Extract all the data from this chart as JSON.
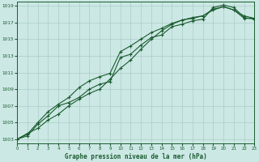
{
  "title": "Graphe pression niveau de la mer (hPa)",
  "bg_color": "#cce8e4",
  "grid_color": "#aaccc8",
  "line_color": "#1a5c30",
  "xlim": [
    0,
    23
  ],
  "ylim": [
    1002.5,
    1019.5
  ],
  "yticks": [
    1003,
    1005,
    1007,
    1009,
    1011,
    1013,
    1015,
    1017,
    1019
  ],
  "xticks": [
    0,
    1,
    2,
    3,
    4,
    5,
    6,
    7,
    8,
    9,
    10,
    11,
    12,
    13,
    14,
    15,
    16,
    17,
    18,
    19,
    20,
    21,
    22,
    23
  ],
  "series1_y": [
    1003.0,
    1003.4,
    1004.8,
    1005.8,
    1007.0,
    1007.4,
    1008.0,
    1009.0,
    1009.6,
    1009.9,
    1012.8,
    1013.2,
    1014.3,
    1015.2,
    1015.5,
    1016.5,
    1016.8,
    1017.2,
    1017.4,
    1018.8,
    1019.1,
    1018.8,
    1017.6,
    1017.4
  ],
  "series2_y": [
    1003.0,
    1003.6,
    1005.0,
    1006.3,
    1007.2,
    1008.0,
    1009.2,
    1010.0,
    1010.5,
    1010.9,
    1013.5,
    1014.2,
    1015.0,
    1015.8,
    1016.3,
    1016.9,
    1017.3,
    1017.6,
    1017.8,
    1018.6,
    1018.9,
    1018.5,
    1017.8,
    1017.5
  ],
  "series3_y": [
    1003.0,
    1003.7,
    1004.3,
    1005.3,
    1006.0,
    1007.0,
    1007.8,
    1008.5,
    1009.0,
    1010.2,
    1011.5,
    1012.5,
    1013.8,
    1015.0,
    1016.0,
    1016.8,
    1017.3,
    1017.5,
    1017.8,
    1018.5,
    1018.9,
    1018.5,
    1017.5,
    1017.5
  ]
}
